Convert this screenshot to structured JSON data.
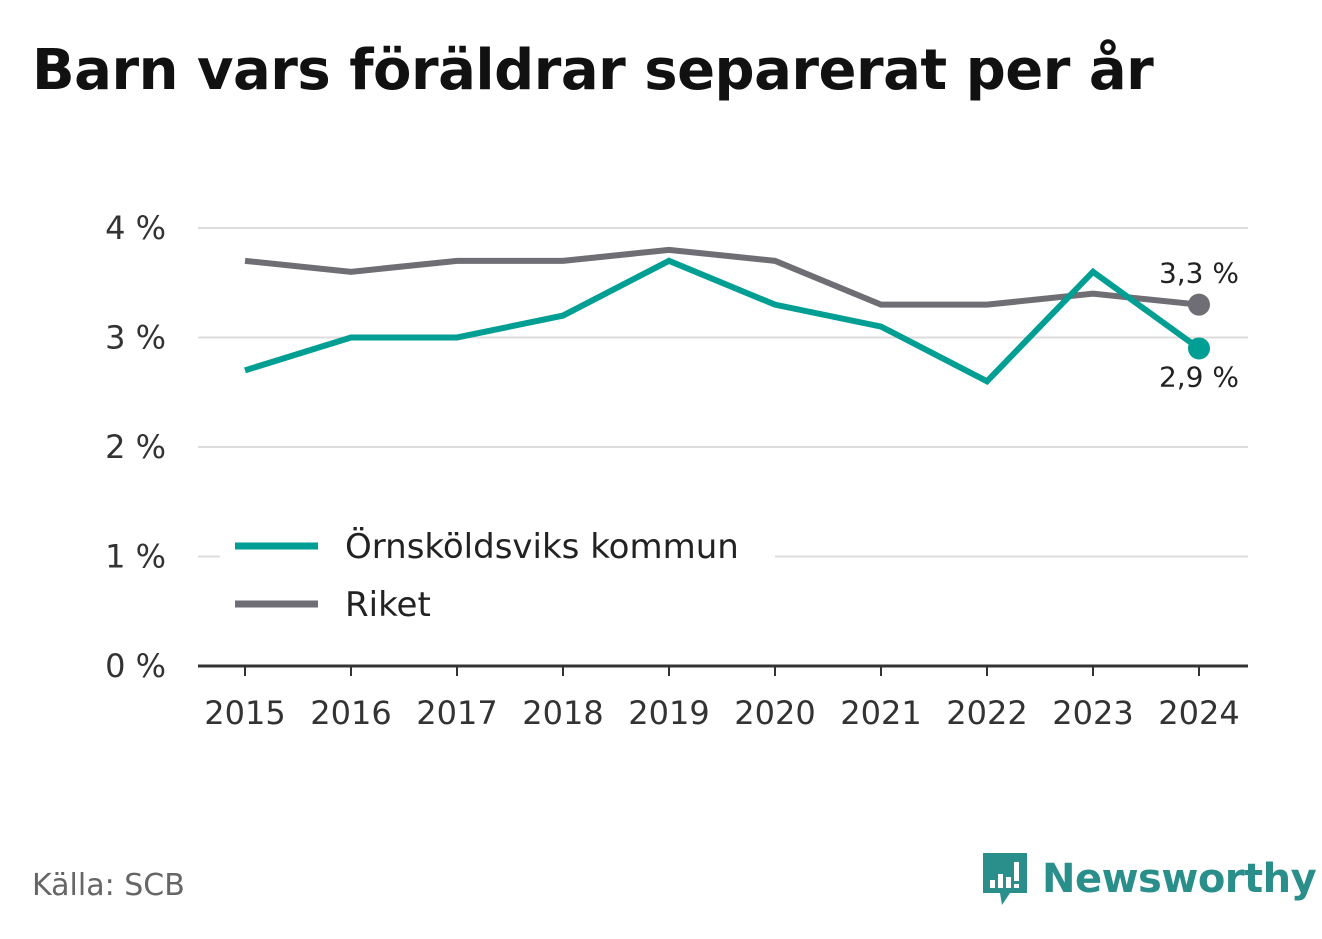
{
  "title": "Barn vars föräldrar separerat per år",
  "source": "Källa: SCB",
  "brand": {
    "name": "Newsworthy",
    "icon": "newsworthy-logo-icon",
    "color": "#2a8f8a"
  },
  "chart_data": {
    "type": "line",
    "categories": [
      "2015",
      "2016",
      "2017",
      "2018",
      "2019",
      "2020",
      "2021",
      "2022",
      "2023",
      "2024"
    ],
    "series": [
      {
        "name": "Örnsköldsviks kommun",
        "color": "#009e93",
        "values": [
          2.7,
          3.0,
          3.0,
          3.2,
          3.7,
          3.3,
          3.1,
          2.6,
          3.6,
          2.9
        ],
        "end_label": "2,9 %"
      },
      {
        "name": "Riket",
        "color": "#6e6e74",
        "values": [
          3.7,
          3.6,
          3.7,
          3.7,
          3.8,
          3.7,
          3.3,
          3.3,
          3.4,
          3.3
        ],
        "end_label": "3,3 %"
      }
    ],
    "ylim": [
      0,
      4
    ],
    "yticks": [
      0,
      1,
      2,
      3,
      4
    ],
    "ytick_labels": [
      "0 %",
      "1 %",
      "2 %",
      "3 %",
      "4 %"
    ],
    "grid": true,
    "legend_position": "bottom-left"
  }
}
